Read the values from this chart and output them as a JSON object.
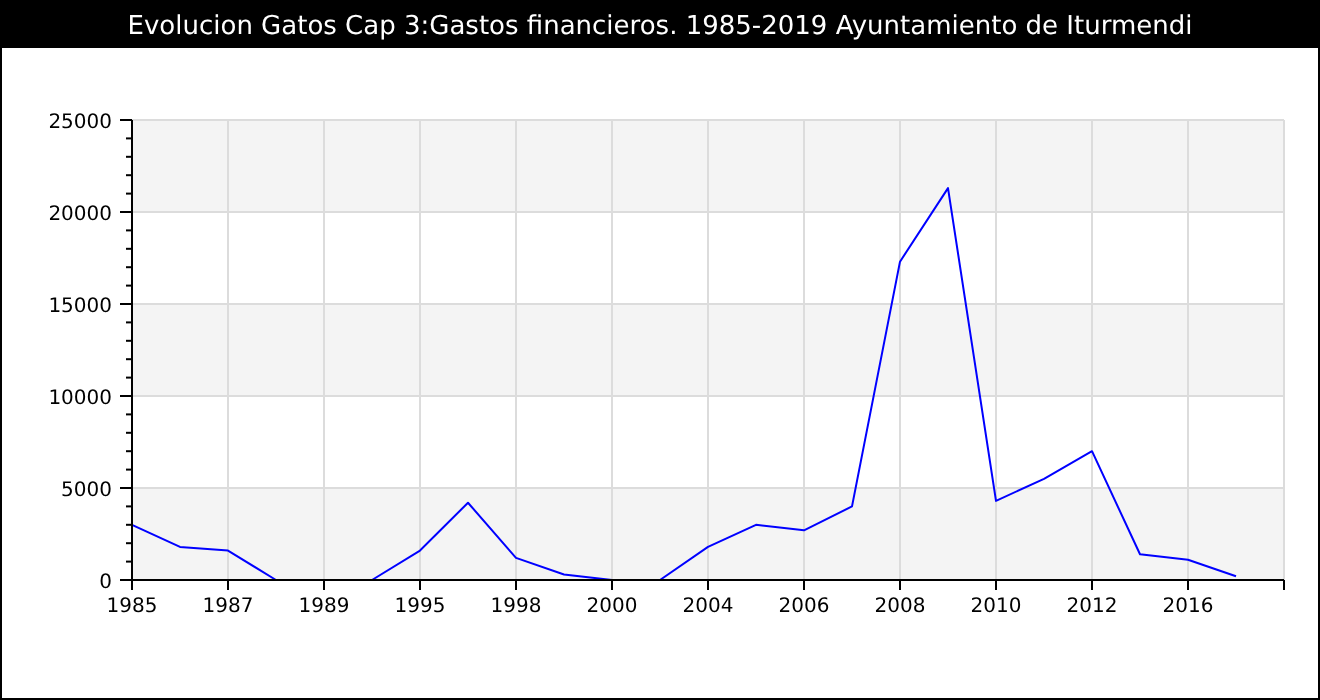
{
  "chart_data": {
    "type": "line",
    "title": "Evolucion Gatos Cap 3:Gastos financieros. 1985-2019 Ayuntamiento de Iturmendi",
    "categories": [
      "1985",
      null,
      "1987",
      null,
      "1989",
      null,
      "1995",
      null,
      "1998",
      null,
      "2000",
      null,
      "2004",
      null,
      "2006",
      null,
      "2008",
      null,
      "2010",
      null,
      "2012",
      null,
      "2016",
      null,
      null
    ],
    "series": [
      {
        "color": "#0000ff",
        "values": [
          3000,
          1800,
          1600,
          0,
          0,
          0,
          1600,
          4200,
          1200,
          300,
          0,
          0,
          1800,
          3000,
          2700,
          4000,
          17300,
          21300,
          4300,
          5500,
          7000,
          1400,
          1100,
          200,
          null
        ]
      }
    ],
    "ylim": [
      0,
      25000
    ],
    "yticks": [
      0,
      {
        "value": 1000,
        "label": null
      },
      {
        "value": 2000,
        "label": null
      },
      {
        "value": 3000,
        "label": null
      },
      {
        "value": 4000,
        "label": null
      },
      5000,
      {
        "value": 6000,
        "label": null
      },
      {
        "value": 7000,
        "label": null
      },
      {
        "value": 8000,
        "label": null
      },
      {
        "value": 9000,
        "label": null
      },
      10000,
      {
        "value": 11000,
        "label": null
      },
      {
        "value": 12000,
        "label": null
      },
      {
        "value": 13000,
        "label": null
      },
      {
        "value": 14000,
        "label": null
      },
      15000,
      {
        "value": 16000,
        "label": null
      },
      {
        "value": 17000,
        "label": null
      },
      {
        "value": 18000,
        "label": null
      },
      {
        "value": 19000,
        "label": null
      },
      20000,
      {
        "value": 21000,
        "label": null
      },
      {
        "value": 22000,
        "label": null
      },
      {
        "value": 23000,
        "label": null
      },
      {
        "value": 24000,
        "label": null
      },
      25000
    ],
    "grid": true,
    "marker": "none",
    "line_style": "solid"
  }
}
